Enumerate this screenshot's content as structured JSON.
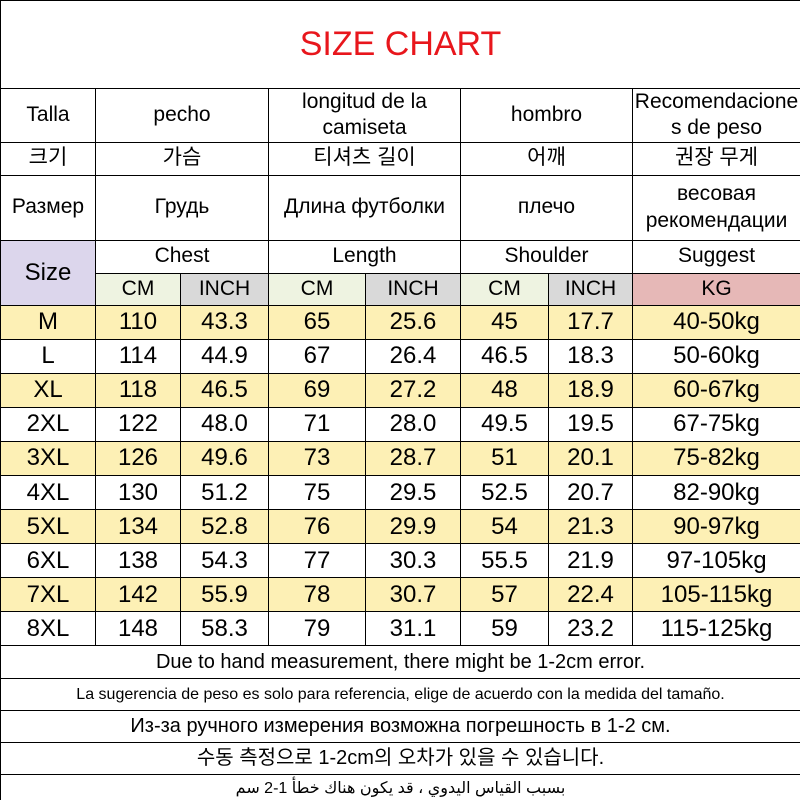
{
  "title": "SIZE CHART",
  "header_rows": [
    [
      "Talla",
      "pecho",
      "longitud de la camiseta",
      "hombro",
      "Recomendaciones de peso"
    ],
    [
      "크기",
      "가슴",
      "티셔츠 길이",
      "어깨",
      "권장 무게"
    ],
    [
      "Размер",
      "Грудь",
      "Длина футболки",
      "плечо",
      "весовая рекомендации"
    ]
  ],
  "size_label": "Size",
  "groups": [
    "Chest",
    "Length",
    "Shoulder",
    "Suggest"
  ],
  "units": [
    "CM",
    "INCH",
    "CM",
    "INCH",
    "CM",
    "INCH",
    "KG"
  ],
  "rows": [
    [
      "M",
      "110",
      "43.3",
      "65",
      "25.6",
      "45",
      "17.7",
      "40-50kg"
    ],
    [
      "L",
      "114",
      "44.9",
      "67",
      "26.4",
      "46.5",
      "18.3",
      "50-60kg"
    ],
    [
      "XL",
      "118",
      "46.5",
      "69",
      "27.2",
      "48",
      "18.9",
      "60-67kg"
    ],
    [
      "2XL",
      "122",
      "48.0",
      "71",
      "28.0",
      "49.5",
      "19.5",
      "67-75kg"
    ],
    [
      "3XL",
      "126",
      "49.6",
      "73",
      "28.7",
      "51",
      "20.1",
      "75-82kg"
    ],
    [
      "4XL",
      "130",
      "51.2",
      "75",
      "29.5",
      "52.5",
      "20.7",
      "82-90kg"
    ],
    [
      "5XL",
      "134",
      "52.8",
      "76",
      "29.9",
      "54",
      "21.3",
      "90-97kg"
    ],
    [
      "6XL",
      "138",
      "54.3",
      "77",
      "30.3",
      "55.5",
      "21.9",
      "97-105kg"
    ],
    [
      "7XL",
      "142",
      "55.9",
      "78",
      "30.7",
      "57",
      "22.4",
      "105-115kg"
    ],
    [
      "8XL",
      "148",
      "58.3",
      "79",
      "31.1",
      "59",
      "23.2",
      "115-125kg"
    ]
  ],
  "notes": [
    "Due to hand measurement, there might be 1-2cm error.",
    "La sugerencia de peso es solo para referencia, elige de acuerdo con la medida del tamaño.",
    "Из-за ручного измерения возможна погрешность в 1-2 см.",
    "수동 측정으로 1-2cm의 오차가 있을 수 있습니다.",
    "بسبب القياس اليدوي ، قد يكون هناك خطأ 1-2 سم"
  ]
}
